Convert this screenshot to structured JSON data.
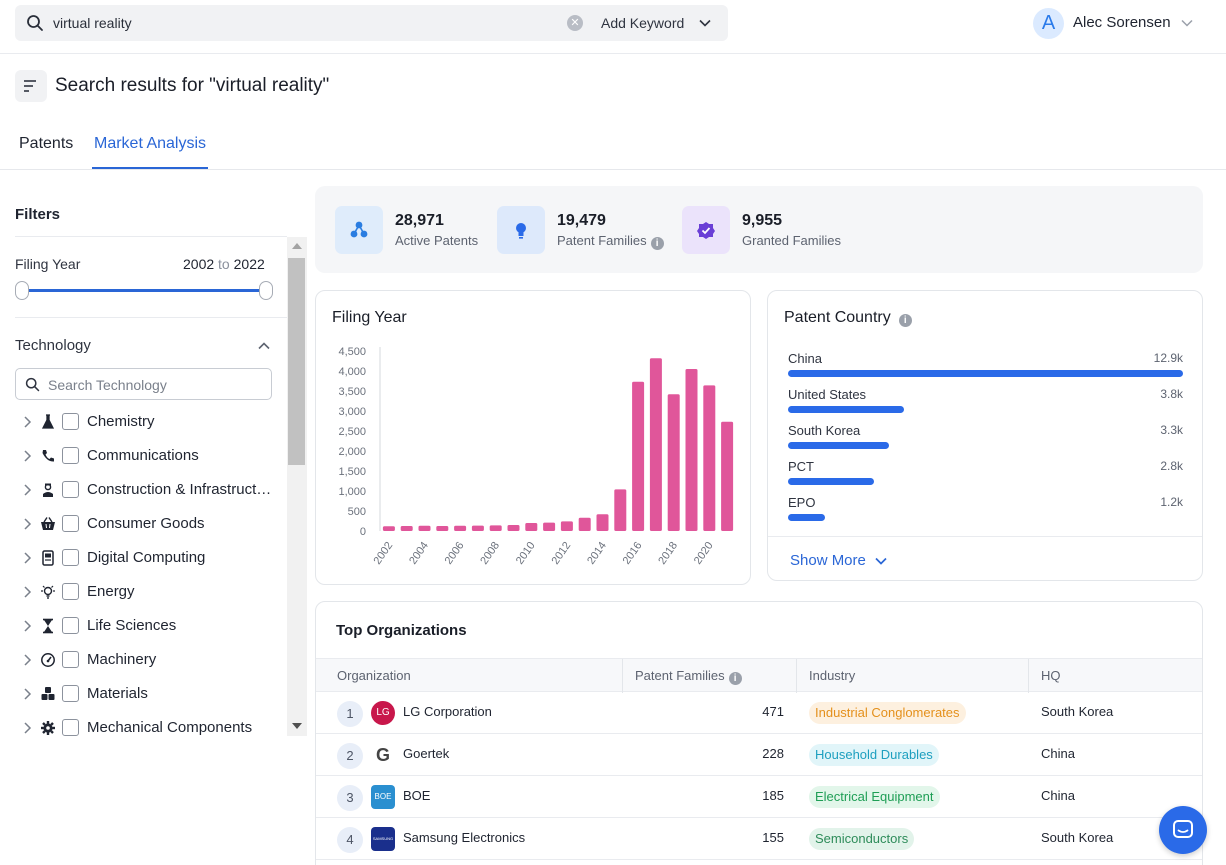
{
  "search": {
    "query": "virtual reality",
    "add_keyword_label": "Add Keyword"
  },
  "user": {
    "initial": "A",
    "name": "Alec Sorensen"
  },
  "page": {
    "title": "Search results for \"virtual reality\""
  },
  "tabs": [
    {
      "label": "Patents",
      "active": false
    },
    {
      "label": "Market Analysis",
      "active": true
    }
  ],
  "filters": {
    "title": "Filters",
    "filing_year": {
      "label": "Filing Year",
      "from": "2002",
      "to_word": "to",
      "to": "2022"
    },
    "technology": {
      "label": "Technology",
      "search_placeholder": "Search Technology",
      "items": [
        {
          "label": "Chemistry",
          "icon": "flask-icon"
        },
        {
          "label": "Communications",
          "icon": "phone-icon"
        },
        {
          "label": "Construction & Infrastructure",
          "icon": "worker-icon"
        },
        {
          "label": "Consumer Goods",
          "icon": "basket-icon"
        },
        {
          "label": "Digital Computing",
          "icon": "computer-icon"
        },
        {
          "label": "Energy",
          "icon": "lightbulb-icon"
        },
        {
          "label": "Life Sciences",
          "icon": "hourglass-icon"
        },
        {
          "label": "Machinery",
          "icon": "gauge-icon"
        },
        {
          "label": "Materials",
          "icon": "cubes-icon"
        },
        {
          "label": "Mechanical Components",
          "icon": "cog-icon"
        }
      ]
    }
  },
  "stats": [
    {
      "value": "28,971",
      "label": "Active Patents",
      "icon": "molecule-icon",
      "bg": "#dfecfb",
      "fg": "#2a7de1"
    },
    {
      "value": "19,479",
      "label": "Patent Families",
      "icon": "lightbulb-icon",
      "bg": "#dde9fb",
      "fg": "#2a6ae8",
      "info": "i"
    },
    {
      "value": "9,955",
      "label": "Granted Families",
      "icon": "check-badge-icon",
      "bg": "#ebe3fb",
      "fg": "#6a3fd6"
    }
  ],
  "filing_year_card": {
    "title": "Filing Year"
  },
  "chart_data": {
    "type": "bar",
    "title": "Filing Year",
    "x": [
      2002,
      2003,
      2004,
      2005,
      2006,
      2007,
      2008,
      2009,
      2010,
      2011,
      2012,
      2013,
      2014,
      2015,
      2016,
      2017,
      2018,
      2019,
      2020,
      2021
    ],
    "x_tick_labels": [
      "2002",
      "2004",
      "2006",
      "2008",
      "2010",
      "2012",
      "2014",
      "2016",
      "2018",
      "2020"
    ],
    "values": [
      120,
      125,
      130,
      125,
      130,
      135,
      140,
      150,
      200,
      210,
      240,
      330,
      420,
      1040,
      3730,
      4320,
      3420,
      4050,
      3640,
      2730
    ],
    "y_ticks": [
      "0",
      "500",
      "1,000",
      "1,500",
      "2,000",
      "2,500",
      "3,000",
      "3,500",
      "4,000",
      "4,500"
    ],
    "ylim": [
      0,
      4500
    ],
    "color": "#e0569a",
    "grid": false
  },
  "patent_country": {
    "title": "Patent Country",
    "info": "i",
    "max": 12.9,
    "rows": [
      {
        "name": "China",
        "value_label": "12.9k",
        "value": 12.9
      },
      {
        "name": "United States",
        "value_label": "3.8k",
        "value": 3.8
      },
      {
        "name": "South Korea",
        "value_label": "3.3k",
        "value": 3.3
      },
      {
        "name": "PCT",
        "value_label": "2.8k",
        "value": 2.8
      },
      {
        "name": "EPO",
        "value_label": "1.2k",
        "value": 1.2
      }
    ],
    "show_more_label": "Show More"
  },
  "top_organizations": {
    "title": "Top Organizations",
    "headers": {
      "organization": "Organization",
      "patent_families": "Patent Families",
      "patent_families_info": "i",
      "industry": "Industry",
      "hq": "HQ"
    },
    "rows": [
      {
        "rank": "1",
        "name": "LG Corporation",
        "logo_text": "LG",
        "logo_bg": "#c8174b",
        "families": "471",
        "industry": "Industrial Conglomerates",
        "badge_bg": "#fdf0df",
        "badge_fg": "#e4901c",
        "hq": "South Korea"
      },
      {
        "rank": "2",
        "name": "Goertek",
        "logo_text": "G",
        "logo_bg": "#ffffff",
        "families": "228",
        "industry": "Household Durables",
        "badge_bg": "#e1f5f9",
        "badge_fg": "#1d9fbf",
        "hq": "China"
      },
      {
        "rank": "3",
        "name": "BOE",
        "logo_text": "BOE",
        "logo_bg": "#2a8fd0",
        "families": "185",
        "industry": "Electrical Equipment",
        "badge_bg": "#e2f6ea",
        "badge_fg": "#1e9e55",
        "hq": "China"
      },
      {
        "rank": "4",
        "name": "Samsung Electronics",
        "logo_text": "SAMSUNG",
        "logo_bg": "#1a2f8c",
        "families": "155",
        "industry": "Semiconductors",
        "badge_bg": "#e2f3ea",
        "badge_fg": "#2e8c5a",
        "hq": "South Korea"
      }
    ]
  }
}
